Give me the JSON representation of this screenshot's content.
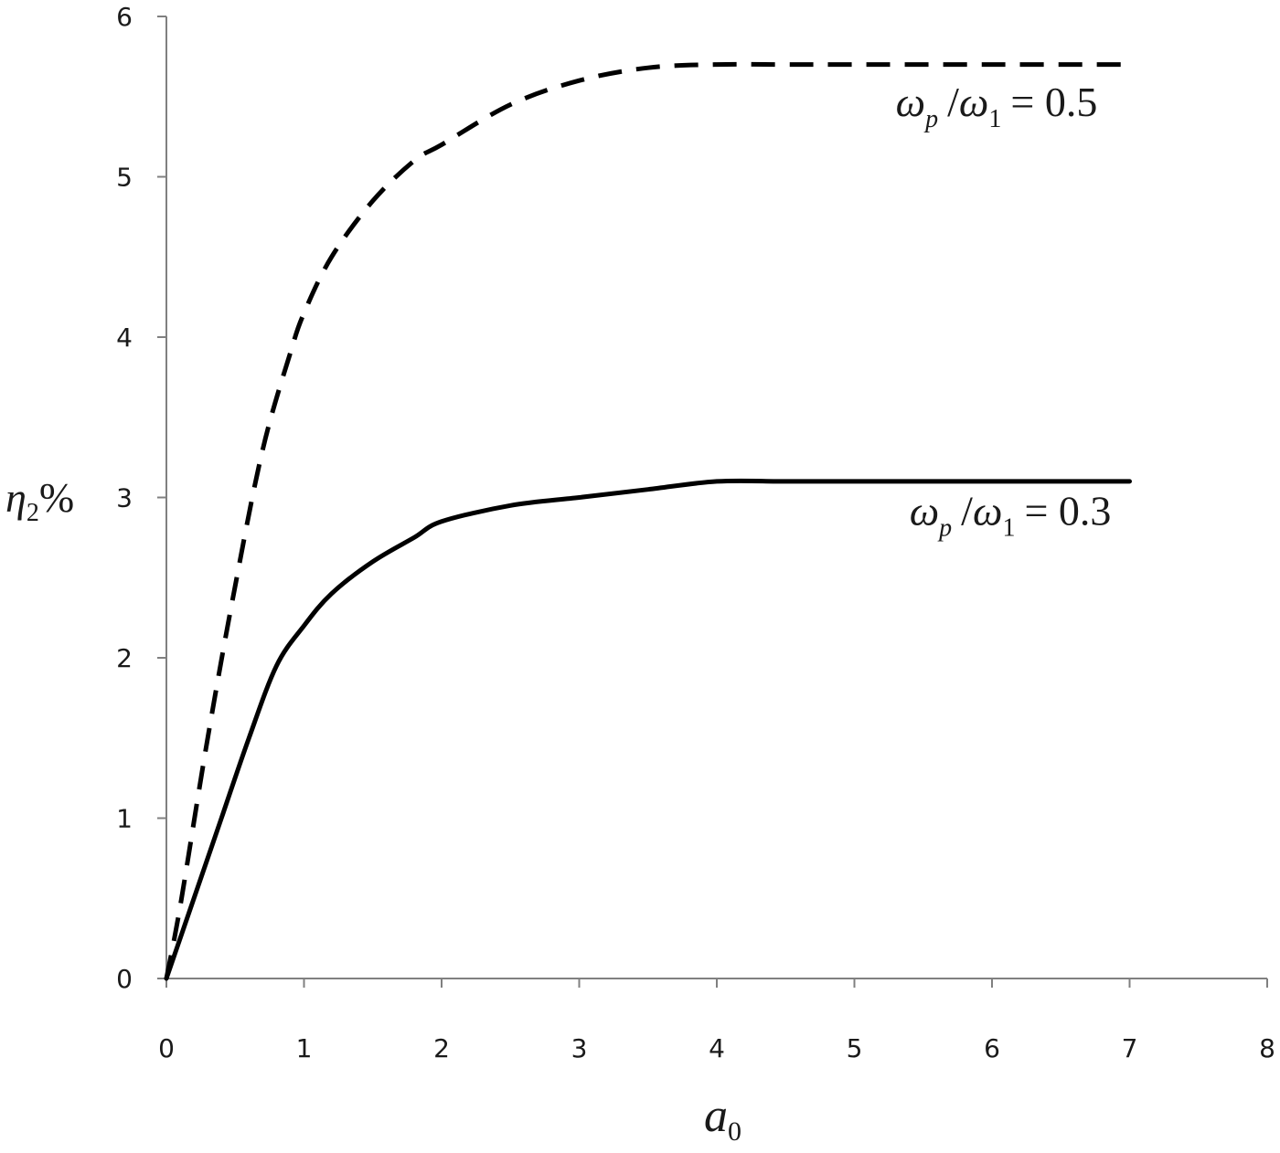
{
  "chart_data": {
    "type": "line",
    "title": "",
    "xlabel": {
      "base": "a",
      "sub": "0"
    },
    "ylabel": {
      "base": "η",
      "sub": "2",
      "suffix": "%"
    },
    "xlim": [
      0,
      8
    ],
    "ylim": [
      0,
      6
    ],
    "xticks": [
      "0",
      "1",
      "2",
      "3",
      "4",
      "5",
      "6",
      "7",
      "8"
    ],
    "yticks": [
      "0",
      "1",
      "2",
      "3",
      "4",
      "5",
      "6"
    ],
    "grid": false,
    "legend": "none",
    "series": [
      {
        "style": "dashed",
        "color": "#000000",
        "x": [
          0,
          0.1,
          0.3,
          0.5,
          0.7,
          0.9,
          1.0,
          1.2,
          1.5,
          1.8,
          2.0,
          2.5,
          3.0,
          3.5,
          4.0,
          4.5,
          5.0,
          6.0,
          7.0
        ],
        "y": [
          0,
          0.45,
          1.5,
          2.45,
          3.3,
          3.9,
          4.15,
          4.5,
          4.85,
          5.1,
          5.2,
          5.45,
          5.6,
          5.68,
          5.7,
          5.7,
          5.7,
          5.7,
          5.7
        ],
        "annotation": {
          "w": "ω",
          "p": "p",
          "slash": "/",
          "one": "1",
          "eq": "= 0.5",
          "x": 5.3,
          "y": 5.38
        }
      },
      {
        "style": "solid",
        "color": "#000000",
        "x": [
          0,
          0.2,
          0.4,
          0.6,
          0.8,
          1.0,
          1.2,
          1.5,
          1.8,
          2.0,
          2.5,
          3.0,
          3.5,
          4.0,
          4.5,
          5.0,
          6.0,
          7.0
        ],
        "y": [
          0,
          0.5,
          1.0,
          1.5,
          1.95,
          2.2,
          2.4,
          2.6,
          2.75,
          2.85,
          2.95,
          3.0,
          3.05,
          3.1,
          3.1,
          3.1,
          3.1,
          3.1
        ],
        "annotation": {
          "w": "ω",
          "p": "p",
          "slash": "/",
          "one": "1",
          "eq": "= 0.3",
          "x": 5.4,
          "y": 2.83
        }
      }
    ]
  }
}
